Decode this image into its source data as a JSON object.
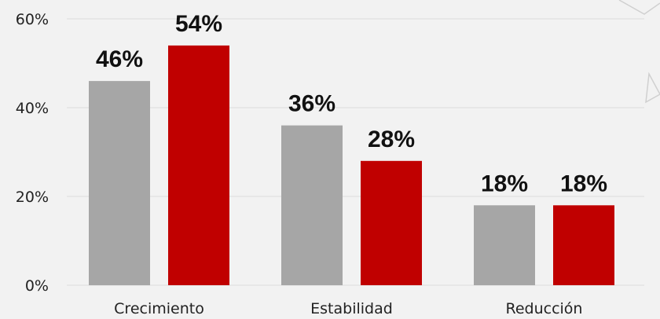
{
  "chart_data": {
    "type": "bar",
    "title": "",
    "xlabel": "",
    "ylabel": "",
    "categories": [
      "Crecimiento",
      "Estabilidad",
      "Reducción"
    ],
    "series": [
      {
        "values": [
          46,
          36,
          18
        ],
        "color": "#a6a6a6"
      },
      {
        "values": [
          54,
          28,
          18
        ],
        "color": "#c00000"
      }
    ],
    "data_labels": [
      [
        "46%",
        "36%",
        "18%"
      ],
      [
        "54%",
        "28%",
        "18%"
      ]
    ],
    "ylim": [
      0,
      60
    ],
    "yticks": [
      0,
      20,
      40,
      60
    ],
    "ytick_labels": [
      "0%",
      "20%",
      "40%",
      "60%"
    ],
    "grid": true,
    "legend": "none"
  },
  "colors": {
    "background": "#f2f2f2",
    "gridline": "#dcdcdc",
    "decor": "#d0d0d0"
  }
}
